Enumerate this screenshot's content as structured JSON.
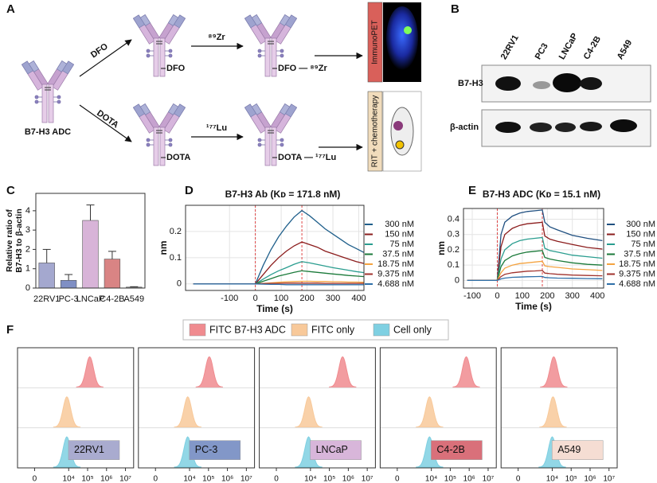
{
  "panels": [
    "A",
    "B",
    "C",
    "D",
    "E",
    "F"
  ],
  "scheme": {
    "start": "B7-H3 ADC",
    "upper_arrow": "DFO",
    "lower_arrow": "DOTA",
    "upper_isotope": "⁸⁹Zr",
    "lower_isotope": "¹⁷⁷Lu",
    "upper_mid": "DFO",
    "lower_mid": "DOTA",
    "upper_end": "DFO — ⁸⁹Zr",
    "lower_end": "DOTA — ¹⁷⁷Lu",
    "upper_image": "ImmunoPET",
    "lower_image": "RIT + chemotherapy"
  },
  "western": {
    "lanes": [
      "22RV1",
      "PC3",
      "LNCaP",
      "C4-2B",
      "A549"
    ],
    "rows": [
      "B7-H3",
      "β-actin"
    ]
  },
  "chart_data": [
    {
      "type": "bar",
      "ylabel": [
        "Relative ratio of",
        "B7-H3 to β-actin"
      ],
      "categories": [
        "22RV1",
        "PC-3",
        "LNCaP",
        "C4-2B",
        "A549"
      ],
      "values": [
        1.3,
        0.4,
        3.5,
        1.5,
        0.05
      ],
      "errors": [
        0.7,
        0.3,
        0.8,
        0.4,
        0.02
      ],
      "colors": [
        "#a4a8cf",
        "#7f8fc4",
        "#d8b4d8",
        "#d98484",
        "#9a9a9a"
      ],
      "ylim": [
        0,
        4.9
      ],
      "yticks": [
        0,
        1,
        2,
        3,
        4
      ]
    },
    {
      "type": "line",
      "title": "B7-H3 Ab (Kᴅ = 171.8 nM)",
      "xlabel": "Time (s)",
      "ylabel": "nm",
      "x": [
        -240,
        -180,
        -120,
        -60,
        0,
        30,
        60,
        90,
        120,
        150,
        180,
        210,
        240,
        270,
        300,
        330,
        360,
        390,
        420
      ],
      "series": [
        {
          "name": "300 nM",
          "color": "#1f5f8b",
          "values": [
            0,
            0,
            0,
            0,
            0,
            0.07,
            0.13,
            0.18,
            0.22,
            0.255,
            0.28,
            0.26,
            0.235,
            0.21,
            0.19,
            0.17,
            0.15,
            0.135,
            0.12
          ]
        },
        {
          "name": "150 nM",
          "color": "#8b1c1c",
          "values": [
            0,
            0,
            0,
            0,
            0,
            0.035,
            0.07,
            0.1,
            0.125,
            0.145,
            0.16,
            0.15,
            0.14,
            0.125,
            0.115,
            0.105,
            0.095,
            0.085,
            0.078
          ]
        },
        {
          "name": "75 nM",
          "color": "#2a9d8f",
          "values": [
            0,
            0,
            0,
            0,
            0,
            0.018,
            0.035,
            0.05,
            0.062,
            0.075,
            0.085,
            0.08,
            0.074,
            0.068,
            0.062,
            0.057,
            0.052,
            0.047,
            0.043
          ]
        },
        {
          "name": "37.5 nM",
          "color": "#1b7a3a",
          "values": [
            0,
            0,
            0,
            0,
            0,
            0.01,
            0.02,
            0.03,
            0.037,
            0.044,
            0.05,
            0.047,
            0.044,
            0.041,
            0.038,
            0.035,
            0.032,
            0.03,
            0.028
          ]
        },
        {
          "name": "18.75 nM",
          "color": "#f4a340",
          "values": [
            0,
            0,
            0,
            0,
            0,
            0.002,
            0.004,
            0.006,
            0.008,
            0.009,
            0.01,
            0.01,
            0.009,
            0.009,
            0.008,
            0.008,
            0.007,
            0.007,
            0.006
          ]
        },
        {
          "name": "9.375 nM",
          "color": "#a0322d",
          "values": [
            0,
            0,
            0,
            0,
            0,
            0.001,
            0.002,
            0.002,
            0.003,
            0.003,
            0.003,
            0.003,
            0.003,
            0.002,
            0.002,
            0.002,
            0.002,
            0.002,
            0.002
          ]
        },
        {
          "name": "4.688 nM",
          "color": "#2e6fa8",
          "values": [
            0,
            0,
            0,
            0,
            0,
            -0.001,
            -0.002,
            -0.002,
            -0.003,
            -0.003,
            -0.003,
            -0.003,
            -0.003,
            -0.003,
            -0.003,
            -0.003,
            -0.003,
            -0.003,
            -0.003
          ]
        }
      ],
      "xlim": [
        -270,
        420
      ],
      "ylim": [
        -0.025,
        0.3
      ],
      "xticks": [
        -100,
        0,
        100,
        200,
        300,
        400
      ],
      "yticks": [
        0,
        0.1,
        0.2
      ],
      "vlines": [
        0,
        180
      ],
      "grid": true
    },
    {
      "type": "line",
      "title": "B7-H3 ADC (Kᴅ = 15.1 nM)",
      "xlabel": "Time (s)",
      "ylabel": "nm",
      "x": [
        -120,
        -60,
        0,
        15,
        30,
        60,
        90,
        120,
        150,
        180,
        190,
        210,
        240,
        300,
        360,
        420
      ],
      "series": [
        {
          "name": "300 nM",
          "color": "#1f4f80",
          "values": [
            0,
            0,
            0,
            0.3,
            0.38,
            0.42,
            0.44,
            0.45,
            0.455,
            0.46,
            0.38,
            0.35,
            0.33,
            0.295,
            0.275,
            0.26
          ]
        },
        {
          "name": "150 nM",
          "color": "#8b1c1c",
          "values": [
            0,
            0,
            0,
            0.22,
            0.3,
            0.34,
            0.36,
            0.37,
            0.375,
            0.38,
            0.29,
            0.27,
            0.255,
            0.235,
            0.215,
            0.205
          ]
        },
        {
          "name": "75 nM",
          "color": "#2a9d8f",
          "values": [
            0,
            0,
            0,
            0.14,
            0.2,
            0.24,
            0.26,
            0.27,
            0.275,
            0.28,
            0.21,
            0.195,
            0.185,
            0.165,
            0.155,
            0.145
          ]
        },
        {
          "name": "37.5 nM",
          "color": "#1b7a3a",
          "values": [
            0,
            0,
            0,
            0.09,
            0.13,
            0.16,
            0.175,
            0.185,
            0.19,
            0.195,
            0.15,
            0.14,
            0.13,
            0.115,
            0.105,
            0.1
          ]
        },
        {
          "name": "18.75 nM",
          "color": "#f4a340",
          "values": [
            0,
            0,
            0,
            0.05,
            0.08,
            0.1,
            0.11,
            0.115,
            0.12,
            0.125,
            0.095,
            0.09,
            0.085,
            0.075,
            0.07,
            0.065
          ]
        },
        {
          "name": "9.375 nM",
          "color": "#a0322d",
          "values": [
            0,
            0,
            0,
            0.025,
            0.04,
            0.05,
            0.055,
            0.06,
            0.062,
            0.065,
            0.048,
            0.044,
            0.04,
            0.035,
            0.032,
            0.03
          ]
        },
        {
          "name": "4.688 nM",
          "color": "#2e6fa8",
          "values": [
            0,
            0,
            0,
            0.01,
            0.015,
            0.02,
            0.022,
            0.024,
            0.025,
            0.026,
            0.019,
            0.017,
            0.015,
            0.014,
            0.012,
            0.011
          ]
        }
      ],
      "xlim": [
        -135,
        425
      ],
      "ylim": [
        -0.05,
        0.47
      ],
      "xticks": [
        -100,
        0,
        100,
        200,
        300,
        400
      ],
      "yticks": [
        0,
        0.1,
        0.2,
        0.3,
        0.4
      ],
      "vlines": [
        0,
        180
      ],
      "grid": true
    },
    {
      "type": "density",
      "xscale": "biexponential",
      "categories": [
        "22RV1",
        "PC-3",
        "LNCaP",
        "C4-2B",
        "A549"
      ],
      "category_colors": [
        "#a9abcf",
        "#8297c8",
        "#d8b6da",
        "#d9707a",
        "#f5ddd3"
      ],
      "series": [
        {
          "name": "FITC B7-H3 ADC",
          "color": "#f08b8f",
          "values": [
            130000,
            110000,
            500000,
            700000,
            12000
          ]
        },
        {
          "name": "FITC only",
          "color": "#f8c99a",
          "values": [
            8000,
            8000,
            8000,
            8000,
            11000
          ]
        },
        {
          "name": "Cell only",
          "color": "#7fd0e2",
          "values": [
            8000,
            8000,
            8000,
            8000,
            10000
          ]
        }
      ],
      "xlim": [
        -1240,
        27000000
      ],
      "xticks": [
        0,
        {
          "value": 10000,
          "label": "10⁴"
        },
        {
          "value": 100000,
          "label": "10⁵"
        },
        {
          "value": 1000000,
          "label": "10⁶"
        },
        {
          "value": 10000000,
          "label": "10⁷"
        }
      ]
    }
  ]
}
